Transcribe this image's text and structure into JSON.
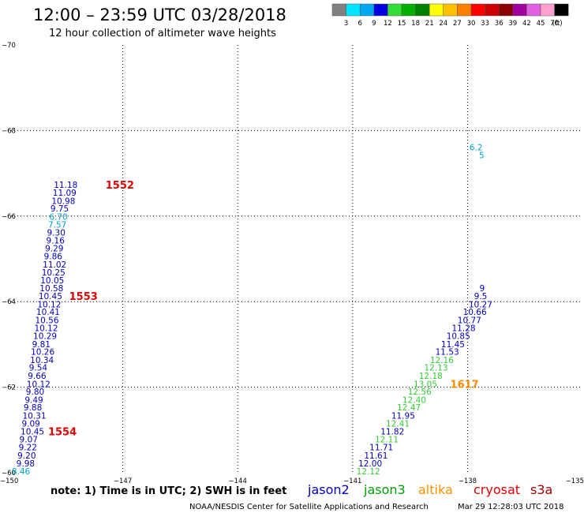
{
  "header": {
    "title": "12:00 – 23:59 UTC 03/28/2018",
    "subtitle": "12 hour collection of altimeter wave heights"
  },
  "colorbar": {
    "labels": [
      "3",
      "6",
      "9",
      "12",
      "15",
      "18",
      "21",
      "24",
      "27",
      "30",
      "33",
      "36",
      "39",
      "42",
      "45",
      "70"
    ],
    "unit": "(ft)",
    "colors": [
      "#808080",
      "#00e5ff",
      "#00a8f0",
      "#0000e0",
      "#33dd33",
      "#00b000",
      "#008000",
      "#ffff00",
      "#ffc000",
      "#ff8000",
      "#ff0000",
      "#cc0000",
      "#8b0000",
      "#a000a0",
      "#e060e0",
      "#ffa0d0",
      "#000000"
    ]
  },
  "chart_data": {
    "type": "scatter",
    "xlim": [
      -150,
      -135
    ],
    "ylim": [
      -70,
      -60
    ],
    "xticks": [
      -150,
      -147,
      -144,
      -141,
      -138,
      -135
    ],
    "xtick_labels": [
      "−150",
      "−147",
      "−144",
      "−141",
      "−138",
      "−135"
    ],
    "yticks": [
      -60,
      -62,
      -64,
      -66,
      -68,
      -70
    ],
    "ytick_labels": [
      "−60",
      "−62",
      "−64",
      "−66",
      "−68",
      "−70"
    ],
    "grid": "dotted",
    "left_track": {
      "satellite": "jason2",
      "points": [
        {
          "lon": -149.9,
          "lat": -60.04,
          "swh": "8.46",
          "c": "#00a0c8"
        },
        {
          "lon": -149.78,
          "lat": -60.22,
          "swh": "9.98",
          "c": "#0000c0"
        },
        {
          "lon": -149.75,
          "lat": -60.41,
          "swh": "9.20",
          "c": "#0000c0"
        },
        {
          "lon": -149.72,
          "lat": -60.6,
          "swh": "9.22",
          "c": "#0000c0"
        },
        {
          "lon": -149.7,
          "lat": -60.78,
          "swh": "9.07",
          "c": "#0000c0"
        },
        {
          "lon": -149.67,
          "lat": -60.97,
          "swh": "10.45",
          "c": "#0000c0"
        },
        {
          "lon": -149.64,
          "lat": -61.15,
          "swh": "9.09",
          "c": "#0000c0"
        },
        {
          "lon": -149.62,
          "lat": -61.34,
          "swh": "10.31",
          "c": "#0000c0"
        },
        {
          "lon": -149.59,
          "lat": -61.53,
          "swh": "9.88",
          "c": "#0000c0"
        },
        {
          "lon": -149.56,
          "lat": -61.71,
          "swh": "9.49",
          "c": "#0000c0"
        },
        {
          "lon": -149.53,
          "lat": -61.9,
          "swh": "9.80",
          "c": "#0000c0"
        },
        {
          "lon": -149.51,
          "lat": -62.08,
          "swh": "10.12",
          "c": "#0000c0"
        },
        {
          "lon": -149.48,
          "lat": -62.27,
          "swh": "9.66",
          "c": "#0000c0"
        },
        {
          "lon": -149.45,
          "lat": -62.46,
          "swh": "9.54",
          "c": "#0000c0"
        },
        {
          "lon": -149.42,
          "lat": -62.64,
          "swh": "10.34",
          "c": "#0000c0"
        },
        {
          "lon": -149.4,
          "lat": -62.83,
          "swh": "10.26",
          "c": "#0000c0"
        },
        {
          "lon": -149.37,
          "lat": -63.01,
          "swh": "9.81",
          "c": "#0000c0"
        },
        {
          "lon": -149.34,
          "lat": -63.2,
          "swh": "10.29",
          "c": "#0000c0"
        },
        {
          "lon": -149.31,
          "lat": -63.39,
          "swh": "10.12",
          "c": "#0000c0"
        },
        {
          "lon": -149.29,
          "lat": -63.57,
          "swh": "10.56",
          "c": "#0000c0"
        },
        {
          "lon": -149.26,
          "lat": -63.76,
          "swh": "10.41",
          "c": "#0000c0"
        },
        {
          "lon": -149.23,
          "lat": -63.94,
          "swh": "10.12",
          "c": "#0000c0"
        },
        {
          "lon": -149.2,
          "lat": -64.13,
          "swh": "10.45",
          "c": "#0000c0"
        },
        {
          "lon": -149.17,
          "lat": -64.32,
          "swh": "10.58",
          "c": "#0000c0"
        },
        {
          "lon": -149.15,
          "lat": -64.5,
          "swh": "10.05",
          "c": "#0000c0"
        },
        {
          "lon": -149.12,
          "lat": -64.69,
          "swh": "10.25",
          "c": "#0000c0"
        },
        {
          "lon": -149.09,
          "lat": -64.87,
          "swh": "11.02",
          "c": "#0000c0"
        },
        {
          "lon": -149.06,
          "lat": -65.06,
          "swh": "9.86",
          "c": "#0000c0"
        },
        {
          "lon": -149.03,
          "lat": -65.25,
          "swh": "9.29",
          "c": "#0000c0"
        },
        {
          "lon": -149.0,
          "lat": -65.43,
          "swh": "9.16",
          "c": "#0000c0"
        },
        {
          "lon": -148.98,
          "lat": -65.62,
          "swh": "9.30",
          "c": "#0000c0"
        },
        {
          "lon": -148.95,
          "lat": -65.8,
          "swh": "7.57",
          "c": "#00a0c8"
        },
        {
          "lon": -148.92,
          "lat": -65.99,
          "swh": "6.70",
          "c": "#00a0c8"
        },
        {
          "lon": -148.89,
          "lat": -66.18,
          "swh": "9.75",
          "c": "#0000c0"
        },
        {
          "lon": -148.86,
          "lat": -66.36,
          "swh": "10.98",
          "c": "#0000c0"
        },
        {
          "lon": -148.83,
          "lat": -66.55,
          "swh": "11.09",
          "c": "#0000c0"
        },
        {
          "lon": -148.8,
          "lat": -66.73,
          "swh": "11.18",
          "c": "#0000c0"
        }
      ]
    },
    "right_track": {
      "satellite": "jason3",
      "points": [
        {
          "lon": -140.9,
          "lat": -60.04,
          "swh": "12.12",
          "c": "#33cc33"
        },
        {
          "lon": -140.85,
          "lat": -60.22,
          "swh": "12.00",
          "c": "#0000c0"
        },
        {
          "lon": -140.7,
          "lat": -60.41,
          "swh": "11.61",
          "c": "#0000c0"
        },
        {
          "lon": -140.56,
          "lat": -60.6,
          "swh": "11.71",
          "c": "#0000c0"
        },
        {
          "lon": -140.42,
          "lat": -60.78,
          "swh": "12.11",
          "c": "#33cc33"
        },
        {
          "lon": -140.27,
          "lat": -60.97,
          "swh": "11.82",
          "c": "#0000c0"
        },
        {
          "lon": -140.13,
          "lat": -61.15,
          "swh": "12.41",
          "c": "#33cc33"
        },
        {
          "lon": -139.99,
          "lat": -61.34,
          "swh": "11.95",
          "c": "#0000c0"
        },
        {
          "lon": -139.84,
          "lat": -61.53,
          "swh": "12.47",
          "c": "#33cc33"
        },
        {
          "lon": -139.7,
          "lat": -61.71,
          "swh": "12.40",
          "c": "#33cc33"
        },
        {
          "lon": -139.56,
          "lat": -61.9,
          "swh": "12.56",
          "c": "#33cc33"
        },
        {
          "lon": -139.41,
          "lat": -62.08,
          "swh": "13.05",
          "c": "#33cc33"
        },
        {
          "lon": -139.27,
          "lat": -62.27,
          "swh": "12.18",
          "c": "#33cc33"
        },
        {
          "lon": -139.13,
          "lat": -62.46,
          "swh": "12.13",
          "c": "#33cc33"
        },
        {
          "lon": -138.98,
          "lat": -62.64,
          "swh": "12.16",
          "c": "#33cc33"
        },
        {
          "lon": -138.84,
          "lat": -62.83,
          "swh": "11.53",
          "c": "#0000c0"
        },
        {
          "lon": -138.69,
          "lat": -63.01,
          "swh": "11.45",
          "c": "#0000c0"
        },
        {
          "lon": -138.55,
          "lat": -63.2,
          "swh": "10.85",
          "c": "#0000c0"
        },
        {
          "lon": -138.41,
          "lat": -63.39,
          "swh": "11.28",
          "c": "#0000c0"
        },
        {
          "lon": -138.26,
          "lat": -63.57,
          "swh": "10.77",
          "c": "#0000c0"
        },
        {
          "lon": -138.12,
          "lat": -63.76,
          "swh": "10.66",
          "c": "#0000c0"
        },
        {
          "lon": -137.97,
          "lat": -63.94,
          "swh": "10.27",
          "c": "#0000c0"
        },
        {
          "lon": -137.83,
          "lat": -64.13,
          "swh": "9.5",
          "c": "#0000c0"
        },
        {
          "lon": -137.69,
          "lat": -64.32,
          "swh": "9",
          "c": "#0000c0"
        }
      ]
    },
    "bottom_right_points": [
      {
        "lon": -137.7,
        "lat": -67.43,
        "swh": "5",
        "c": "#00a0c8"
      },
      {
        "lon": -137.95,
        "lat": -67.61,
        "swh": "6.2",
        "c": "#00a0c8"
      }
    ],
    "pass_labels": [
      {
        "text": "1554",
        "lon": -148.95,
        "lat": -60.97,
        "c": "#dd0000"
      },
      {
        "text": "1553",
        "lon": -148.4,
        "lat": -64.13,
        "c": "#dd0000"
      },
      {
        "text": "1552",
        "lon": -147.45,
        "lat": -66.73,
        "c": "#dd0000"
      },
      {
        "text": "1617",
        "lon": -138.45,
        "lat": -62.08,
        "c": "#ff8c00"
      }
    ]
  },
  "footer": {
    "note": "note: 1) Time is in UTC; 2) SWH is in feet",
    "satellites": [
      {
        "name": "jason2",
        "color": "#0000c0"
      },
      {
        "name": "jason3",
        "color": "#00a000"
      },
      {
        "name": "altika",
        "color": "#ff9000"
      },
      {
        "name": "cryosat",
        "color": "#e00000"
      },
      {
        "name": "s3a",
        "color": "#a00000"
      }
    ],
    "credit": "NOAA/NESDIS Center for Satellite Applications and Research",
    "timestamp": "Mar 29 12:28:03 UTC 2018"
  }
}
